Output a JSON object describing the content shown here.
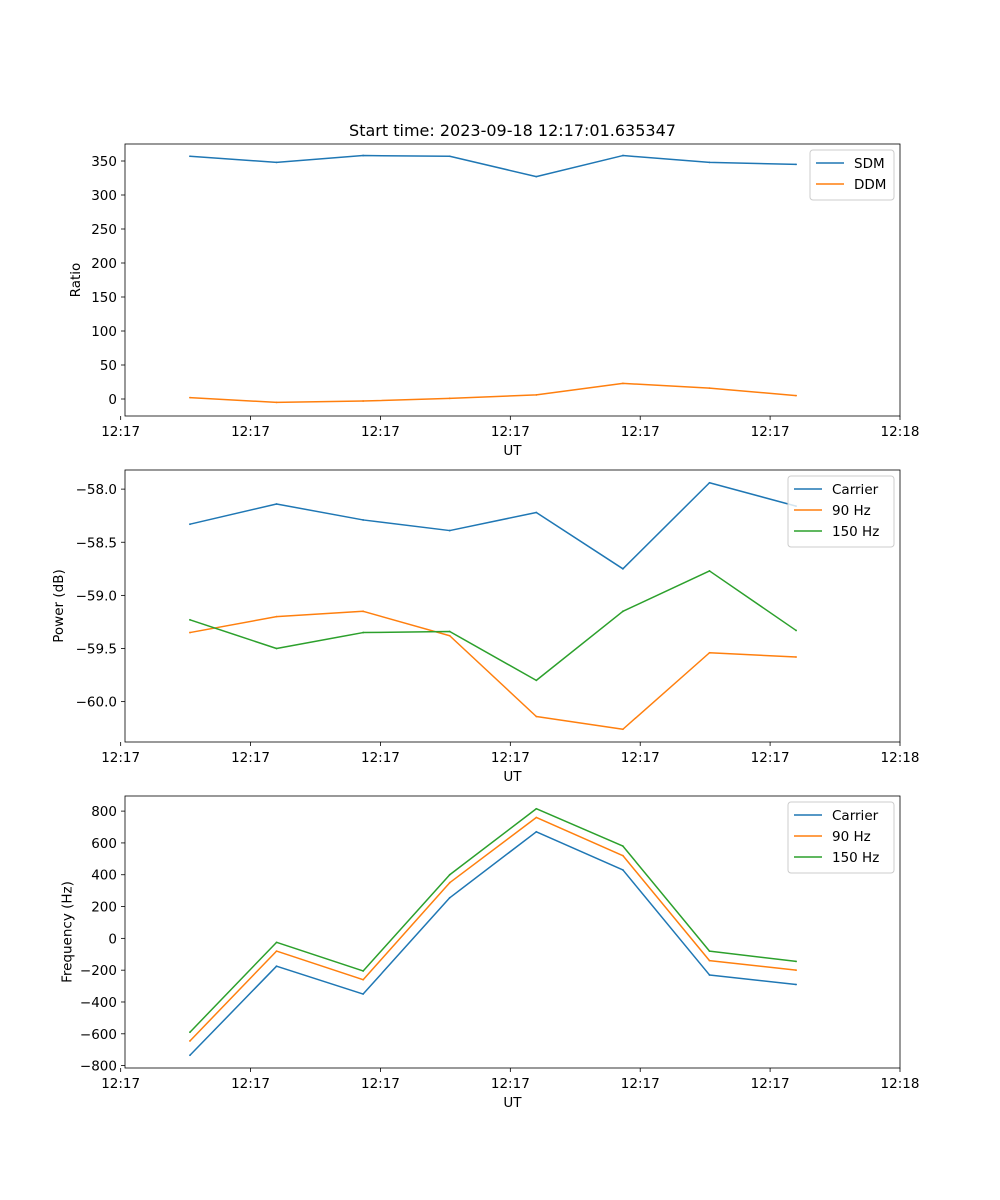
{
  "title": "Start time: 2023-09-18 12:17:01.635347",
  "colors": {
    "blue": "#1f77b4",
    "orange": "#ff7f0e",
    "green": "#2ca02c"
  },
  "chart_data": [
    {
      "type": "line",
      "xlabel": "UT",
      "ylabel": "Ratio",
      "x": [
        1,
        2,
        3,
        4,
        5,
        6,
        7,
        8
      ],
      "xlim": [
        0.25,
        9.2
      ],
      "xticks": [
        0.2,
        1.7,
        3.2,
        4.7,
        6.2,
        7.7,
        9.2
      ],
      "xtick_labels": [
        "12:17",
        "12:17",
        "12:17",
        "12:17",
        "12:17",
        "12:17",
        "12:18"
      ],
      "ylim": [
        -25,
        375
      ],
      "yticks": [
        0,
        50,
        100,
        150,
        200,
        250,
        300,
        350
      ],
      "ytick_labels": [
        "0",
        "50",
        "100",
        "150",
        "200",
        "250",
        "300",
        "350"
      ],
      "legend": "top-right",
      "series": [
        {
          "name": "SDM",
          "color": "#1f77b4",
          "values": [
            357,
            348,
            358,
            357,
            327,
            358,
            348,
            345
          ]
        },
        {
          "name": "DDM",
          "color": "#ff7f0e",
          "values": [
            2,
            -5,
            -3,
            1,
            6,
            23,
            16,
            5
          ]
        }
      ]
    },
    {
      "type": "line",
      "xlabel": "UT",
      "ylabel": "Power (dB)",
      "x": [
        1,
        2,
        3,
        4,
        5,
        6,
        7,
        8
      ],
      "xlim": [
        0.25,
        9.2
      ],
      "xticks": [
        0.2,
        1.7,
        3.2,
        4.7,
        6.2,
        7.7,
        9.2
      ],
      "xtick_labels": [
        "12:17",
        "12:17",
        "12:17",
        "12:17",
        "12:17",
        "12:17",
        "12:18"
      ],
      "ylim": [
        -60.38,
        -57.82
      ],
      "yticks": [
        -60.0,
        -59.5,
        -59.0,
        -58.5,
        -58.0
      ],
      "ytick_labels": [
        "−60.0",
        "−59.5",
        "−59.0",
        "−58.5",
        "−58.0"
      ],
      "legend": "top-right",
      "series": [
        {
          "name": "Carrier",
          "color": "#1f77b4",
          "values": [
            -58.33,
            -58.14,
            -58.29,
            -58.39,
            -58.22,
            -58.75,
            -57.94,
            -58.16
          ]
        },
        {
          "name": "90 Hz",
          "color": "#ff7f0e",
          "values": [
            -59.35,
            -59.2,
            -59.15,
            -59.38,
            -60.14,
            -60.26,
            -59.54,
            -59.58
          ]
        },
        {
          "name": "150 Hz",
          "color": "#2ca02c",
          "values": [
            -59.23,
            -59.5,
            -59.35,
            -59.34,
            -59.8,
            -59.15,
            -58.77,
            -59.33
          ]
        }
      ]
    },
    {
      "type": "line",
      "xlabel": "UT",
      "ylabel": "Frequency (Hz)",
      "x": [
        1,
        2,
        3,
        4,
        5,
        6,
        7,
        8
      ],
      "xlim": [
        0.25,
        9.2
      ],
      "xticks": [
        0.2,
        1.7,
        3.2,
        4.7,
        6.2,
        7.7,
        9.2
      ],
      "xtick_labels": [
        "12:17",
        "12:17",
        "12:17",
        "12:17",
        "12:17",
        "12:17",
        "12:18"
      ],
      "ylim": [
        -815,
        895
      ],
      "yticks": [
        -800,
        -600,
        -400,
        -200,
        0,
        200,
        400,
        600,
        800
      ],
      "ytick_labels": [
        "−800",
        "−600",
        "−400",
        "−200",
        "0",
        "200",
        "400",
        "600",
        "800"
      ],
      "legend": "top-right",
      "series": [
        {
          "name": "Carrier",
          "color": "#1f77b4",
          "values": [
            -735,
            -175,
            -350,
            255,
            670,
            430,
            -230,
            -290
          ]
        },
        {
          "name": "90 Hz",
          "color": "#ff7f0e",
          "values": [
            -645,
            -80,
            -260,
            350,
            760,
            520,
            -140,
            -200
          ]
        },
        {
          "name": "150 Hz",
          "color": "#2ca02c",
          "values": [
            -590,
            -25,
            -205,
            400,
            815,
            580,
            -80,
            -145
          ]
        }
      ]
    }
  ]
}
